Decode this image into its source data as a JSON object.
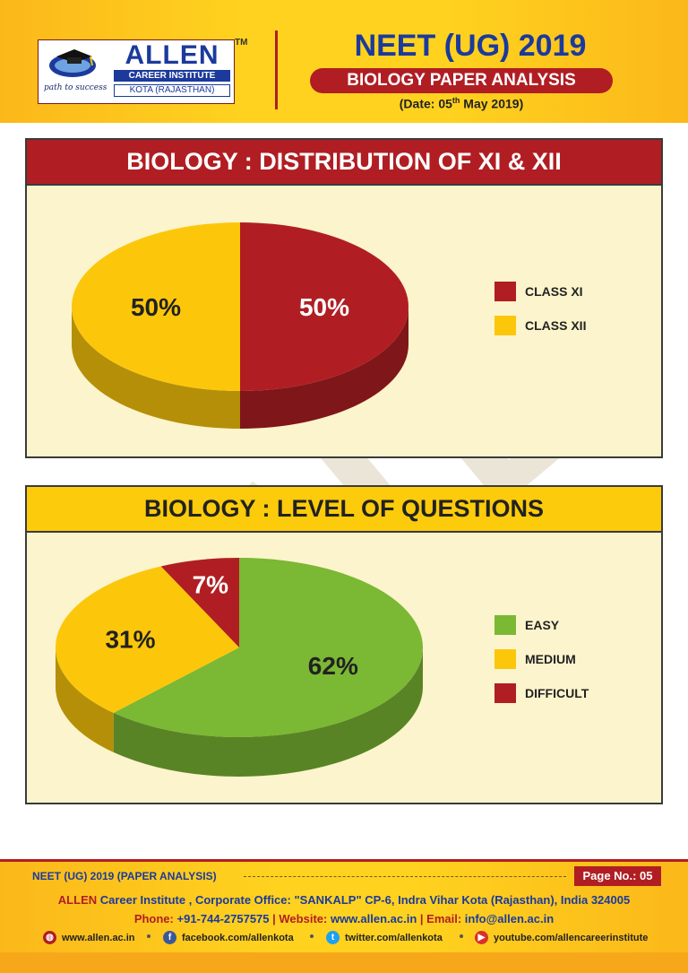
{
  "header": {
    "logo": {
      "name": "ALLEN",
      "subtitle": "CAREER INSTITUTE",
      "location": "KOTA (RAJASTHAN)",
      "tagline": "path to success",
      "tm": "TM"
    },
    "title": "NEET (UG) 2019",
    "subtitle": "BIOLOGY PAPER ANALYSIS",
    "date_prefix": "(Date: 05",
    "date_sup": "th",
    "date_suffix": " May 2019)"
  },
  "chart_data": [
    {
      "type": "pie",
      "title": "BIOLOGY : DISTRIBUTION OF XI & XII",
      "legend_position": "right",
      "slices": [
        {
          "label": "CLASS XI",
          "value": 50,
          "display": "50%",
          "color": "#b01e23"
        },
        {
          "label": "CLASS XII",
          "value": 50,
          "display": "50%",
          "color": "#fcc70b"
        }
      ]
    },
    {
      "type": "pie",
      "title": "BIOLOGY : LEVEL OF QUESTIONS",
      "legend_position": "right",
      "slices": [
        {
          "label": "EASY",
          "value": 62,
          "display": "62%",
          "color": "#7bb834"
        },
        {
          "label": "MEDIUM",
          "value": 31,
          "display": "31%",
          "color": "#fcc70b"
        },
        {
          "label": "DIFFICULT",
          "value": 7,
          "display": "7%",
          "color": "#b01e23"
        }
      ]
    }
  ],
  "footer": {
    "left": "NEET (UG) 2019 (PAPER ANALYSIS)",
    "page": "Page No.: 05",
    "brand": "ALLEN",
    "address": " Career Institute , Corporate Office: \"SANKALP\" CP-6, Indra Vihar Kota (Rajasthan), India 324005",
    "phone_label": "Phone:",
    "phone": "+91-744-2757575",
    "website_label": "Website:",
    "website": "www.allen.ac.in",
    "email_label": "Email:",
    "email": "info@allen.ac.in",
    "links": [
      {
        "icon": "globe-icon",
        "text": "www.allen.ac.in",
        "color": "#b01e23"
      },
      {
        "icon": "facebook-icon",
        "text": "facebook.com/allenkota",
        "color": "#3b5998"
      },
      {
        "icon": "twitter-icon",
        "text": "twitter.com/allenkota",
        "color": "#1da1f2"
      },
      {
        "icon": "youtube-icon",
        "text": "youtube.com/allencareerinstitute",
        "color": "#d9302b"
      }
    ]
  }
}
